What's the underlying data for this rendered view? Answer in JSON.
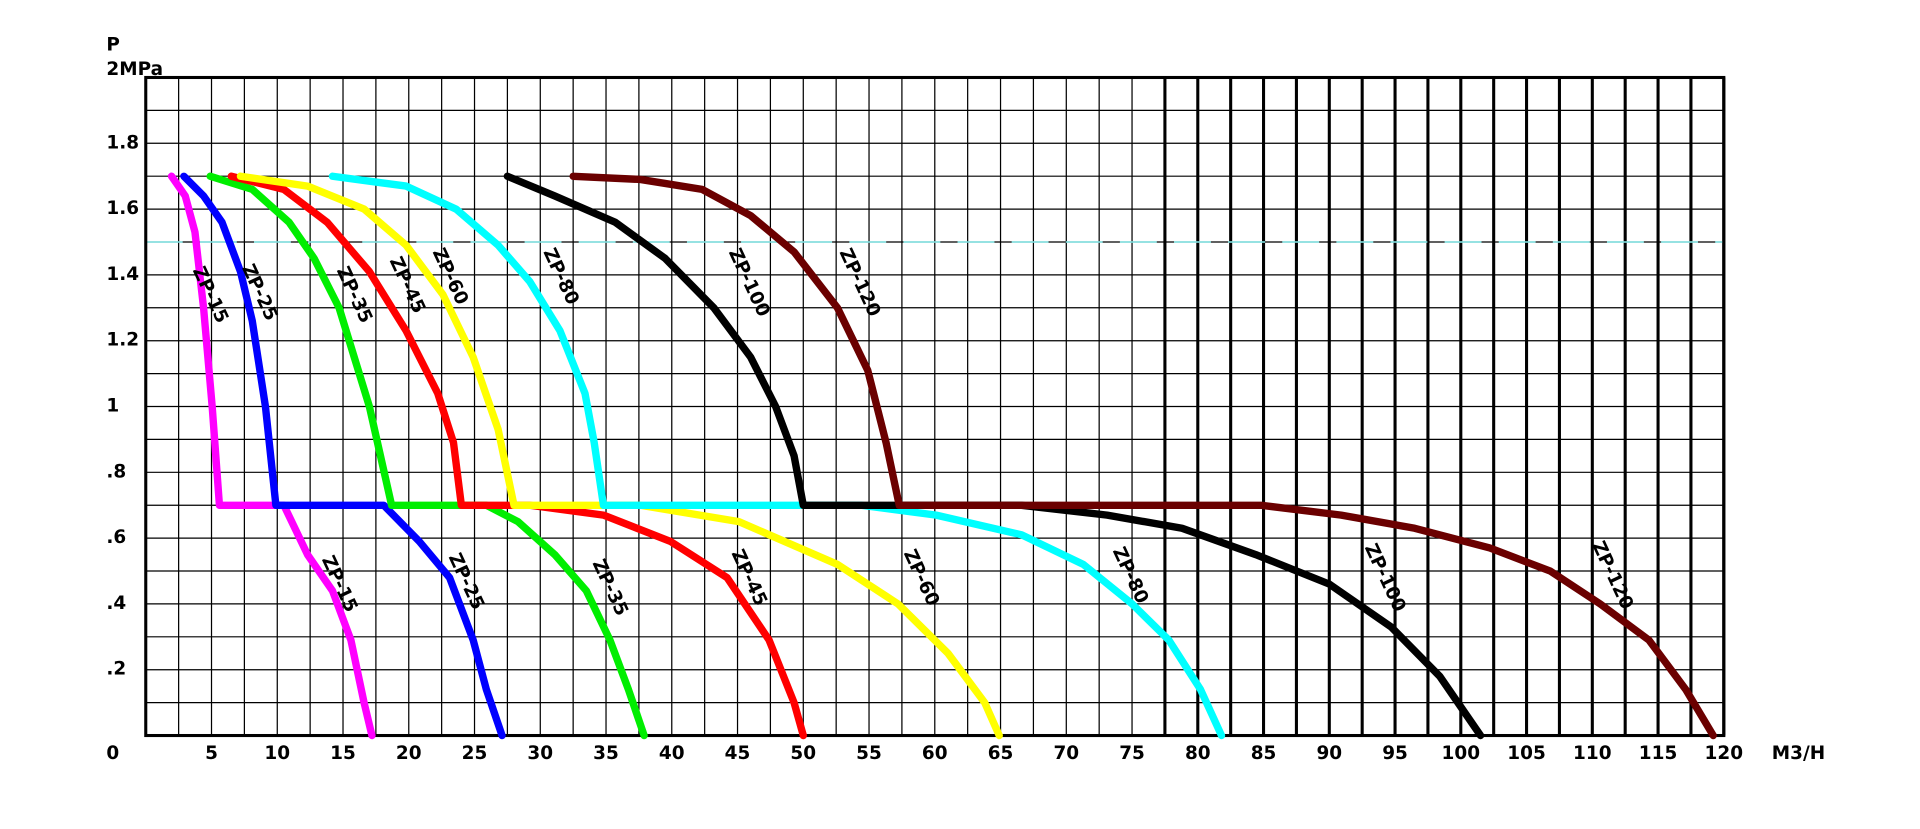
{
  "chart_data": {
    "type": "line",
    "y_label": "P",
    "x_label": "M3/H",
    "xlim": [
      0,
      120
    ],
    "ylim": [
      0,
      2
    ],
    "xticks": [
      5,
      10,
      15,
      20,
      25,
      30,
      35,
      40,
      45,
      50,
      55,
      60,
      65,
      70,
      75,
      80,
      85,
      90,
      95,
      100,
      105,
      110,
      115,
      120
    ],
    "yticks": [
      {
        "value": 0,
        "label": "0"
      },
      {
        "value": 0.2,
        "label": ".2"
      },
      {
        "value": 0.4,
        "label": ".4"
      },
      {
        "value": 0.6,
        "label": ".6"
      },
      {
        "value": 0.8,
        "label": ".8"
      },
      1,
      1.2,
      1.4,
      1.6,
      1.8,
      {
        "value": 2,
        "label": "2MPa"
      }
    ],
    "minor_xticks": [
      2.5,
      7.5,
      12.5,
      17.5,
      22.5,
      27.5,
      32.5,
      37.5,
      42.5,
      47.5,
      52.5,
      57.5,
      62.5,
      67.5,
      72.5,
      77.5,
      82.5,
      87.5,
      92.5,
      97.5,
      102.5,
      107.5,
      112.5,
      117.5
    ],
    "minor_yticks": [
      0.1,
      0.3,
      0.5,
      0.7,
      0.9,
      1.1,
      1.3,
      1.5,
      1.7,
      1.9
    ],
    "grid": true,
    "heavy_grid_from": 77.5,
    "reference_line": {
      "value": 1.5,
      "color": "#88eeee"
    },
    "series": [
      {
        "name": "ZP-15",
        "color": "#ff00ff",
        "x": [
          1.96,
          3.0,
          3.74,
          4.4,
          5.05,
          5.6,
          10.5,
          12.3,
          14.2,
          15.6,
          16.6,
          17.2
        ],
        "values": [
          1.7,
          1.64,
          1.53,
          1.3,
          1.0,
          0.7,
          0.7,
          0.55,
          0.44,
          0.29,
          0.1,
          0
        ]
      },
      {
        "name": "ZP-25",
        "color": "#0000ff",
        "x": [
          2.9,
          4.4,
          5.8,
          7.2,
          8.1,
          9.1,
          9.9,
          18.1,
          20.8,
          23.1,
          24.9,
          25.9,
          27.1
        ],
        "values": [
          1.7,
          1.64,
          1.56,
          1.41,
          1.26,
          1.0,
          0.7,
          0.7,
          0.59,
          0.48,
          0.29,
          0.14,
          0
        ]
      },
      {
        "name": "ZP-35",
        "color": "#00ee00",
        "x": [
          4.9,
          8.1,
          10.9,
          12.8,
          14.7,
          17.0,
          18.7,
          25.9,
          28.3,
          31.1,
          33.5,
          35.3,
          36.7,
          37.9
        ],
        "values": [
          1.7,
          1.66,
          1.56,
          1.45,
          1.3,
          1.0,
          0.7,
          0.7,
          0.65,
          0.55,
          0.44,
          0.29,
          0.14,
          0
        ]
      },
      {
        "name": "ZP-45",
        "color": "#ff0000",
        "x": [
          6.5,
          10.5,
          13.8,
          17.0,
          19.8,
          22.2,
          23.4,
          24.0,
          29.2,
          34.8,
          39.9,
          44.2,
          47.4,
          49.3,
          50.0
        ],
        "values": [
          1.7,
          1.66,
          1.56,
          1.41,
          1.23,
          1.04,
          0.89,
          0.7,
          0.7,
          0.67,
          0.59,
          0.48,
          0.29,
          0.1,
          0
        ]
      },
      {
        "name": "ZP-60",
        "color": "#ffff00",
        "x": [
          7.2,
          12.3,
          16.6,
          19.8,
          22.6,
          24.9,
          26.8,
          28.0,
          37.6,
          45.1,
          52.6,
          57.2,
          61.0,
          63.8,
          64.9
        ],
        "values": [
          1.7,
          1.67,
          1.6,
          1.49,
          1.34,
          1.15,
          0.93,
          0.7,
          0.7,
          0.65,
          0.52,
          0.4,
          0.25,
          0.1,
          0
        ]
      },
      {
        "name": "ZP-80",
        "color": "#00ffff",
        "x": [
          14.2,
          19.8,
          23.6,
          26.8,
          29.2,
          31.5,
          33.4,
          34.1,
          34.8,
          54.4,
          60.1,
          66.6,
          71.3,
          75.0,
          77.8,
          80.2,
          81.8
        ],
        "values": [
          1.7,
          1.67,
          1.6,
          1.49,
          1.38,
          1.23,
          1.04,
          0.89,
          0.7,
          0.7,
          0.67,
          0.61,
          0.52,
          0.4,
          0.29,
          0.14,
          0
        ]
      },
      {
        "name": "ZP-100",
        "color": "#000000",
        "x": [
          27.5,
          31.1,
          35.7,
          39.5,
          43.2,
          46.0,
          47.9,
          49.3,
          50.0,
          66.6,
          73.1,
          78.8,
          84.4,
          90.0,
          94.7,
          98.4,
          101.5
        ],
        "values": [
          1.7,
          1.64,
          1.56,
          1.45,
          1.3,
          1.15,
          1.0,
          0.85,
          0.7,
          0.7,
          0.67,
          0.63,
          0.55,
          0.46,
          0.33,
          0.18,
          0
        ]
      },
      {
        "name": "ZP-120",
        "color": "#6b0000",
        "x": [
          32.5,
          37.6,
          42.3,
          46.0,
          49.3,
          52.6,
          54.9,
          56.3,
          57.3,
          84.8,
          90.9,
          96.5,
          102.2,
          106.8,
          110.6,
          114.3,
          117.1,
          119.2
        ],
        "values": [
          1.7,
          1.69,
          1.66,
          1.58,
          1.47,
          1.3,
          1.11,
          0.89,
          0.7,
          0.7,
          0.67,
          0.63,
          0.57,
          0.5,
          0.4,
          0.29,
          0.14,
          0
        ]
      }
    ]
  }
}
